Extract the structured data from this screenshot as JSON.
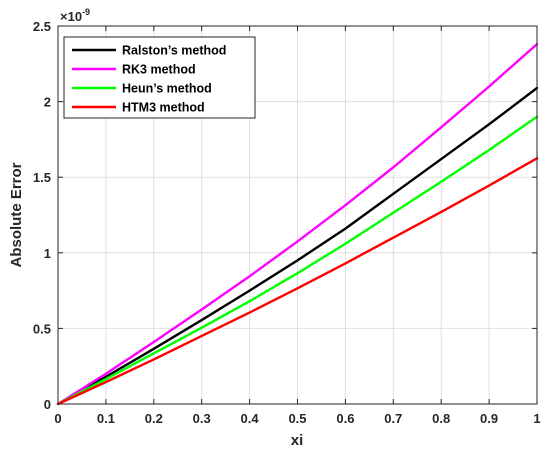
{
  "chart_data": {
    "type": "line",
    "xlabel": "xi",
    "ylabel": "Absolute Error",
    "exponent_base": "×10",
    "exponent_power": "-9",
    "xlim": [
      0,
      1
    ],
    "ylim": [
      0,
      2.5
    ],
    "x_ticks": [
      0,
      0.1,
      0.2,
      0.3,
      0.4,
      0.5,
      0.6,
      0.7,
      0.8,
      0.9,
      1
    ],
    "x_tick_labels": [
      "0",
      "0.1",
      "0.2",
      "0.3",
      "0.4",
      "0.5",
      "0.6",
      "0.7",
      "0.8",
      "0.9",
      "1"
    ],
    "y_ticks": [
      0,
      0.5,
      1,
      1.5,
      2,
      2.5
    ],
    "y_tick_labels": [
      "0",
      "0.5",
      "1",
      "1.5",
      "2",
      "2.5"
    ],
    "grid": true,
    "legend_position": "top-left",
    "x": [
      0,
      0.1,
      0.2,
      0.3,
      0.4,
      0.5,
      0.6,
      0.7,
      0.8,
      0.9,
      1.0
    ],
    "series": [
      {
        "name": "Ralston’s method",
        "color": "#000000",
        "values": [
          0,
          0.18,
          0.365,
          0.555,
          0.75,
          0.95,
          1.16,
          1.39,
          1.62,
          1.85,
          2.09
        ]
      },
      {
        "name": "RK3 method",
        "color": "#ff00ff",
        "values": [
          0,
          0.2,
          0.41,
          0.625,
          0.845,
          1.075,
          1.315,
          1.565,
          1.83,
          2.1,
          2.38
        ]
      },
      {
        "name": "Heun’s method",
        "color": "#00ff00",
        "values": [
          0,
          0.165,
          0.335,
          0.505,
          0.68,
          0.865,
          1.06,
          1.265,
          1.47,
          1.68,
          1.9
        ]
      },
      {
        "name": "HTM3 method",
        "color": "#ff0000",
        "values": [
          0,
          0.145,
          0.295,
          0.45,
          0.605,
          0.765,
          0.93,
          1.1,
          1.27,
          1.445,
          1.625
        ]
      }
    ]
  }
}
